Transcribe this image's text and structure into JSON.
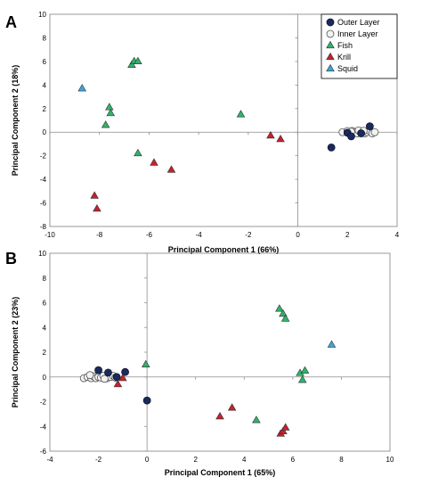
{
  "colors": {
    "outer": "#1b2a5c",
    "inner": "#f2f2f2",
    "fish": "#2fb36b",
    "krill": "#c8202a",
    "squid": "#3ba7d8"
  },
  "legend": {
    "position": "top-right",
    "items": [
      {
        "key": "outer",
        "label": "Outer Layer",
        "marker": "circle"
      },
      {
        "key": "inner",
        "label": "Inner Layer",
        "marker": "circle"
      },
      {
        "key": "fish",
        "label": "Fish",
        "marker": "triangle"
      },
      {
        "key": "krill",
        "label": "Krill",
        "marker": "triangle"
      },
      {
        "key": "squid",
        "label": "Squid",
        "marker": "triangle"
      }
    ]
  },
  "chart_data": [
    {
      "type": "scatter",
      "panel_label": "A",
      "xlabel": "Principal Component 1 (66%)",
      "ylabel": "Principal Component 2 (18%)",
      "xlim": [
        -10,
        4
      ],
      "ylim": [
        -8,
        10
      ],
      "xticks": [
        -10,
        -8,
        -6,
        -4,
        -2,
        0,
        2,
        4
      ],
      "yticks": [
        -8,
        -6,
        -4,
        -2,
        0,
        2,
        4,
        6,
        8,
        10
      ],
      "grid": false,
      "series": [
        {
          "key": "inner",
          "points": [
            [
              1.8,
              0.0
            ],
            [
              2.0,
              0.1
            ],
            [
              2.1,
              -0.1
            ],
            [
              2.2,
              0.1
            ],
            [
              2.3,
              0.0
            ],
            [
              2.4,
              -0.1
            ],
            [
              2.5,
              0.1
            ],
            [
              2.6,
              0.0
            ],
            [
              2.7,
              -0.1
            ],
            [
              2.8,
              0.0
            ],
            [
              2.9,
              0.1
            ],
            [
              3.0,
              -0.1
            ],
            [
              3.1,
              0.0
            ],
            [
              2.45,
              0.15
            ],
            [
              2.15,
              0.05
            ],
            [
              2.65,
              0.12
            ]
          ]
        },
        {
          "key": "outer",
          "points": [
            [
              1.35,
              -1.3
            ],
            [
              2.0,
              -0.05
            ],
            [
              2.15,
              -0.35
            ],
            [
              2.55,
              -0.1
            ],
            [
              2.9,
              0.5
            ]
          ]
        },
        {
          "key": "fish",
          "points": [
            [
              -6.7,
              5.7
            ],
            [
              -6.6,
              6.0
            ],
            [
              -6.45,
              6.0
            ],
            [
              -7.6,
              2.1
            ],
            [
              -7.55,
              1.6
            ],
            [
              -7.75,
              0.6
            ],
            [
              -6.45,
              -1.8
            ],
            [
              -2.3,
              1.5
            ]
          ]
        },
        {
          "key": "krill",
          "points": [
            [
              -8.2,
              -5.4
            ],
            [
              -8.1,
              -6.5
            ],
            [
              -5.8,
              -2.6
            ],
            [
              -5.1,
              -3.2
            ],
            [
              -1.1,
              -0.3
            ],
            [
              -0.7,
              -0.6
            ]
          ]
        },
        {
          "key": "squid",
          "points": [
            [
              -8.7,
              3.7
            ]
          ]
        }
      ]
    },
    {
      "type": "scatter",
      "panel_label": "B",
      "xlabel": "Principal Component 1 (65%)",
      "ylabel": "Principal Component 2 (23%)",
      "xlim": [
        -4,
        10
      ],
      "ylim": [
        -6,
        10
      ],
      "xticks": [
        -4,
        -2,
        0,
        2,
        4,
        6,
        8,
        10
      ],
      "yticks": [
        -6,
        -4,
        -2,
        0,
        2,
        4,
        6,
        8,
        10
      ],
      "grid": false,
      "series": [
        {
          "key": "inner",
          "points": [
            [
              -2.6,
              -0.1
            ],
            [
              -2.45,
              0.0
            ],
            [
              -2.3,
              -0.1
            ],
            [
              -2.2,
              0.05
            ],
            [
              -2.1,
              -0.1
            ],
            [
              -2.0,
              0.0
            ],
            [
              -1.9,
              -0.05
            ],
            [
              -1.8,
              0.1
            ],
            [
              -1.65,
              -0.1
            ],
            [
              -1.5,
              0.0
            ],
            [
              -1.4,
              0.1
            ],
            [
              -1.3,
              -0.05
            ],
            [
              -2.35,
              0.15
            ],
            [
              -1.75,
              -0.15
            ]
          ]
        },
        {
          "key": "outer",
          "points": [
            [
              -2.0,
              0.55
            ],
            [
              -1.6,
              0.35
            ],
            [
              -1.25,
              0.0
            ],
            [
              -0.9,
              0.4
            ],
            [
              0.0,
              -1.9
            ]
          ]
        },
        {
          "key": "fish",
          "points": [
            [
              -0.05,
              1.0
            ],
            [
              4.5,
              -3.5
            ],
            [
              5.45,
              5.5
            ],
            [
              5.6,
              5.1
            ],
            [
              5.7,
              4.7
            ],
            [
              6.3,
              0.3
            ],
            [
              6.4,
              -0.25
            ],
            [
              6.5,
              0.5
            ]
          ]
        },
        {
          "key": "krill",
          "points": [
            [
              -1.2,
              -0.6
            ],
            [
              -1.0,
              -0.1
            ],
            [
              3.0,
              -3.2
            ],
            [
              3.5,
              -2.5
            ],
            [
              5.5,
              -4.6
            ],
            [
              5.6,
              -4.4
            ],
            [
              5.7,
              -4.1
            ]
          ]
        },
        {
          "key": "squid",
          "points": [
            [
              7.6,
              2.6
            ]
          ]
        }
      ]
    }
  ]
}
